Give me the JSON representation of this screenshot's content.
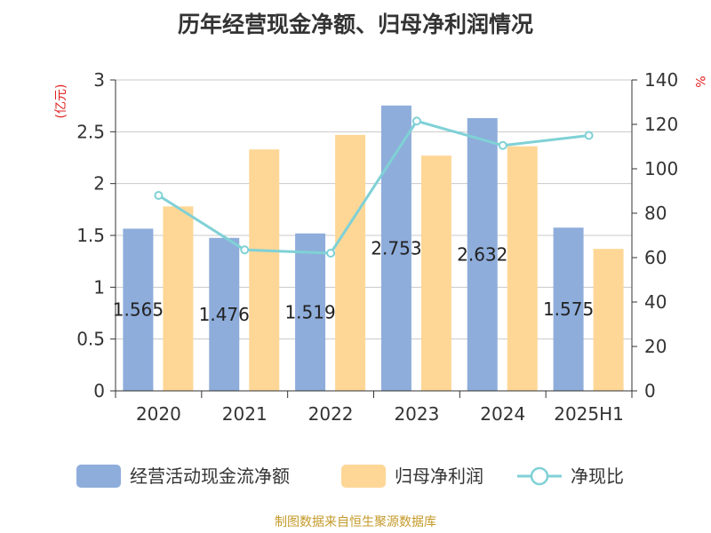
{
  "title": "历年经营现金净额、归母净利润情况",
  "source": "制图数据来自恒生聚源数据库",
  "colors": {
    "cash_bar": "#8eaddb",
    "profit_bar": "#fed797",
    "ratio_line": "#7fd1d6",
    "unit_red": "#e02020",
    "source_gold": "#c49a2a"
  },
  "chart_data": {
    "type": "bar",
    "categories": [
      "2020",
      "2021",
      "2022",
      "2023",
      "2024",
      "2025H1"
    ],
    "series": [
      {
        "name": "经营活动现金流净额",
        "type": "bar",
        "axis": "left",
        "values": [
          1.565,
          1.476,
          1.519,
          2.753,
          2.632,
          1.575
        ],
        "data_labels": [
          "1.565",
          "1.476",
          "1.519",
          "2.753",
          "2.632",
          "1.575"
        ]
      },
      {
        "name": "归母净利润",
        "type": "bar",
        "axis": "left",
        "values": [
          1.78,
          2.33,
          2.47,
          2.27,
          2.36,
          1.37
        ]
      },
      {
        "name": "净现比",
        "type": "line",
        "axis": "right",
        "values": [
          88,
          63.5,
          62,
          121.5,
          110.5,
          115
        ]
      }
    ],
    "y_left": {
      "unit": "(亿元)",
      "ylim": [
        0,
        3
      ],
      "ticks": [
        "0",
        "0.5",
        "1",
        "1.5",
        "2",
        "2.5",
        "3"
      ]
    },
    "y_right": {
      "unit": "%",
      "ylim": [
        0,
        140
      ],
      "ticks": [
        "0",
        "20",
        "40",
        "60",
        "80",
        "100",
        "120",
        "140"
      ]
    },
    "grid": true,
    "legend": "bottom"
  }
}
